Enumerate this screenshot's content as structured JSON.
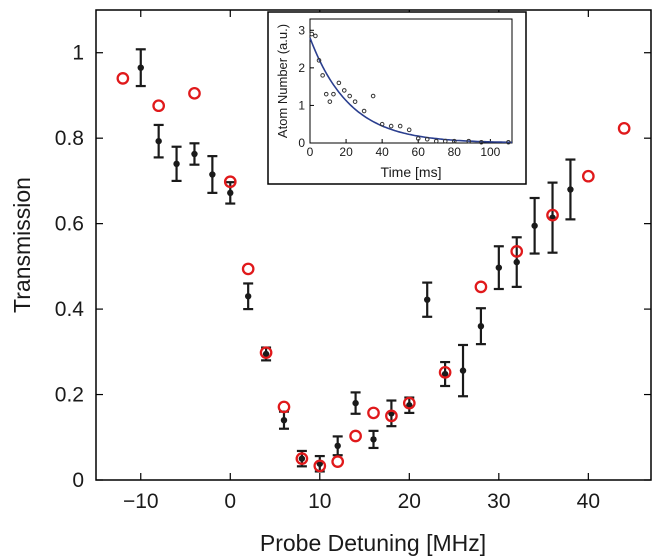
{
  "chart_data": [
    {
      "type": "scatter",
      "title": "",
      "xlabel": "Probe Detuning [MHz]",
      "ylabel": "Transmission",
      "xlim": [
        -15,
        47
      ],
      "ylim": [
        0,
        1.1
      ],
      "xticks": [
        -10,
        0,
        10,
        20,
        30,
        40
      ],
      "xtick_labels": [
        "−10",
        "0",
        "10",
        "20",
        "30",
        "40"
      ],
      "yticks": [
        0,
        0.2,
        0.4,
        0.6,
        0.8,
        1
      ],
      "ytick_labels": [
        "0",
        "0.2",
        "0.4",
        "0.6",
        "0.8",
        "1"
      ],
      "grid": false,
      "series": [
        {
          "style": "points-with-errorbars",
          "color": "#1a1a1a",
          "x": [
            -10,
            -8,
            -6,
            -4,
            -2,
            0,
            2,
            4,
            6,
            8,
            10,
            12,
            14,
            16,
            18,
            20,
            22,
            24,
            26,
            28,
            30,
            32,
            34,
            36,
            38
          ],
          "y": [
            0.965,
            0.793,
            0.74,
            0.763,
            0.715,
            0.672,
            0.43,
            0.295,
            0.14,
            0.05,
            0.038,
            0.08,
            0.18,
            0.095,
            0.156,
            0.175,
            0.422,
            0.248,
            0.256,
            0.36,
            0.497,
            0.51,
            0.595,
            0.614,
            0.68
          ],
          "err": [
            0.043,
            0.038,
            0.04,
            0.025,
            0.043,
            0.025,
            0.03,
            0.015,
            0.02,
            0.018,
            0.018,
            0.022,
            0.025,
            0.02,
            0.03,
            0.018,
            0.04,
            0.028,
            0.06,
            0.042,
            0.05,
            0.058,
            0.065,
            0.082,
            0.07
          ]
        },
        {
          "style": "open-circles",
          "color": "#e0191b",
          "x": [
            -12,
            -8,
            -4,
            0,
            2,
            4,
            6,
            8,
            10,
            12,
            14,
            16,
            18,
            20,
            24,
            28,
            32,
            36,
            40,
            44
          ],
          "y": [
            0.94,
            0.876,
            0.905,
            0.698,
            0.494,
            0.298,
            0.171,
            0.05,
            0.033,
            0.043,
            0.103,
            0.157,
            0.15,
            0.18,
            0.252,
            0.452,
            0.535,
            0.62,
            0.711,
            0.823
          ]
        }
      ]
    },
    {
      "type": "scatter",
      "title": "",
      "xlabel": "Time [ms]",
      "ylabel": "Atom Number (a.u.)",
      "xlim": [
        0,
        112
      ],
      "ylim": [
        0,
        3.3
      ],
      "xticks": [
        0,
        20,
        40,
        60,
        80,
        100
      ],
      "xtick_labels": [
        "0",
        "20",
        "40",
        "60",
        "80",
        "100"
      ],
      "yticks": [
        0,
        1,
        2,
        3
      ],
      "ytick_labels": [
        "0",
        "1",
        "2",
        "3"
      ],
      "series": [
        {
          "style": "points",
          "color": "#333333",
          "x": [
            1,
            3,
            5,
            7,
            9,
            11,
            13,
            16,
            19,
            22,
            25,
            30,
            35,
            40,
            45,
            50,
            55,
            60,
            65,
            70,
            75,
            80,
            88,
            95,
            110
          ],
          "y": [
            2.9,
            2.85,
            2.2,
            1.8,
            1.3,
            1.1,
            1.3,
            1.6,
            1.4,
            1.25,
            1.1,
            0.85,
            1.25,
            0.5,
            0.45,
            0.45,
            0.35,
            0.12,
            0.1,
            0.05,
            0.05,
            0.05,
            0.05,
            0.02,
            0.02
          ]
        },
        {
          "style": "fit-line",
          "color": "#2b3f8f",
          "function": "exponential decay",
          "amplitude": 2.8,
          "time_constant_ms": 22
        }
      ]
    }
  ]
}
